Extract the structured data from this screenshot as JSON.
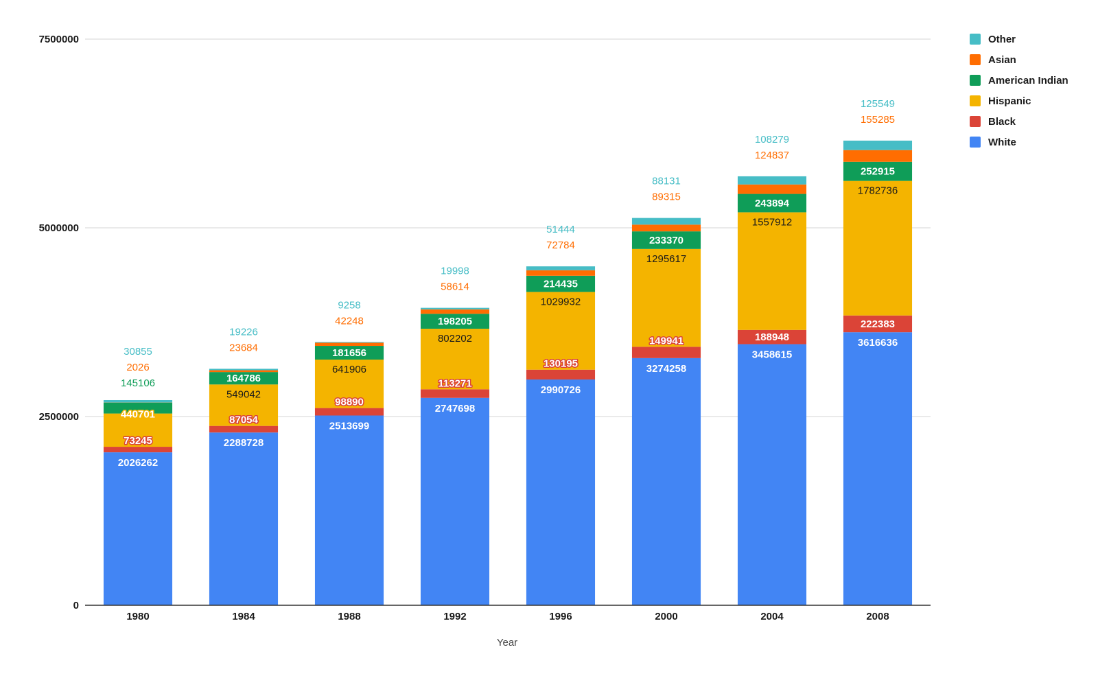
{
  "chart_data": {
    "type": "bar",
    "stacked": true,
    "title": "",
    "xlabel": "Year",
    "ylabel": "",
    "ylim": [
      0,
      7500000
    ],
    "yticks": [
      0,
      2500000,
      5000000,
      7500000
    ],
    "grid": true,
    "legend_position": "top-right",
    "categories": [
      "1980",
      "1984",
      "1988",
      "1992",
      "1996",
      "2000",
      "2004",
      "2008"
    ],
    "series": [
      {
        "name": "White",
        "color": "#4285f4",
        "values": [
          2026262,
          2288728,
          2513699,
          2747698,
          2990726,
          3274258,
          3458615,
          3616636
        ]
      },
      {
        "name": "Black",
        "color": "#db4437",
        "values": [
          73245,
          87054,
          98890,
          113271,
          130195,
          149941,
          188948,
          222383
        ]
      },
      {
        "name": "Hispanic",
        "color": "#f4b400",
        "values": [
          440701,
          549042,
          641906,
          802202,
          1029932,
          1295617,
          1557912,
          1782736
        ]
      },
      {
        "name": "American Indian",
        "color": "#0f9d58",
        "values": [
          145106,
          164786,
          181656,
          198205,
          214435,
          233370,
          243894,
          252915
        ]
      },
      {
        "name": "Asian",
        "color": "#ff6d01",
        "values": [
          2026,
          23684,
          42248,
          58614,
          72784,
          89315,
          124837,
          155285
        ]
      },
      {
        "name": "Other",
        "color": "#46bdc6",
        "values": [
          30855,
          19226,
          9258,
          19998,
          51444,
          88131,
          108279,
          125549
        ]
      }
    ]
  }
}
